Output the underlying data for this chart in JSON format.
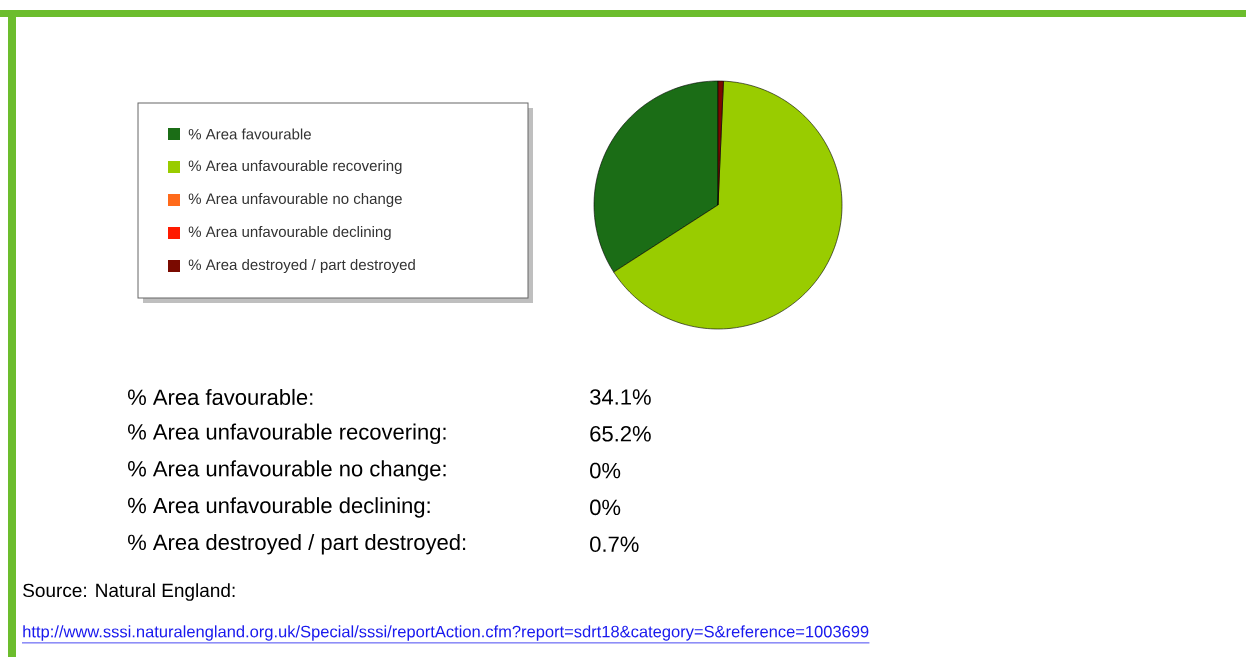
{
  "chart_data": {
    "type": "pie",
    "legend": "left",
    "categories": [
      "% Area favourable",
      "% Area unfavourable recovering",
      "% Area unfavourable no change",
      "% Area unfavourable declining",
      "% Area destroyed / part destroyed"
    ],
    "values": [
      34.1,
      65.2,
      0,
      0,
      0.7
    ],
    "colors": [
      "#1b6d16",
      "#99cc00",
      "#ff6a1a",
      "#ff1a00",
      "#7a0a00"
    ],
    "annotations": [
      "% Area favourable:",
      "34.1%",
      "% Area unfavourable recovering:",
      "65.2%",
      "% Area unfavourable no change:",
      "0%",
      "% Area unfavourable declining:",
      "0%",
      "% Area destroyed / part destroyed:",
      "0.7%",
      "Source: Natural England:",
      "http://www.sssi.naturalengland.org.uk/Special/sssi/reportAction.cfm?report=sdrt18&category=S&reference=1003699"
    ]
  }
}
